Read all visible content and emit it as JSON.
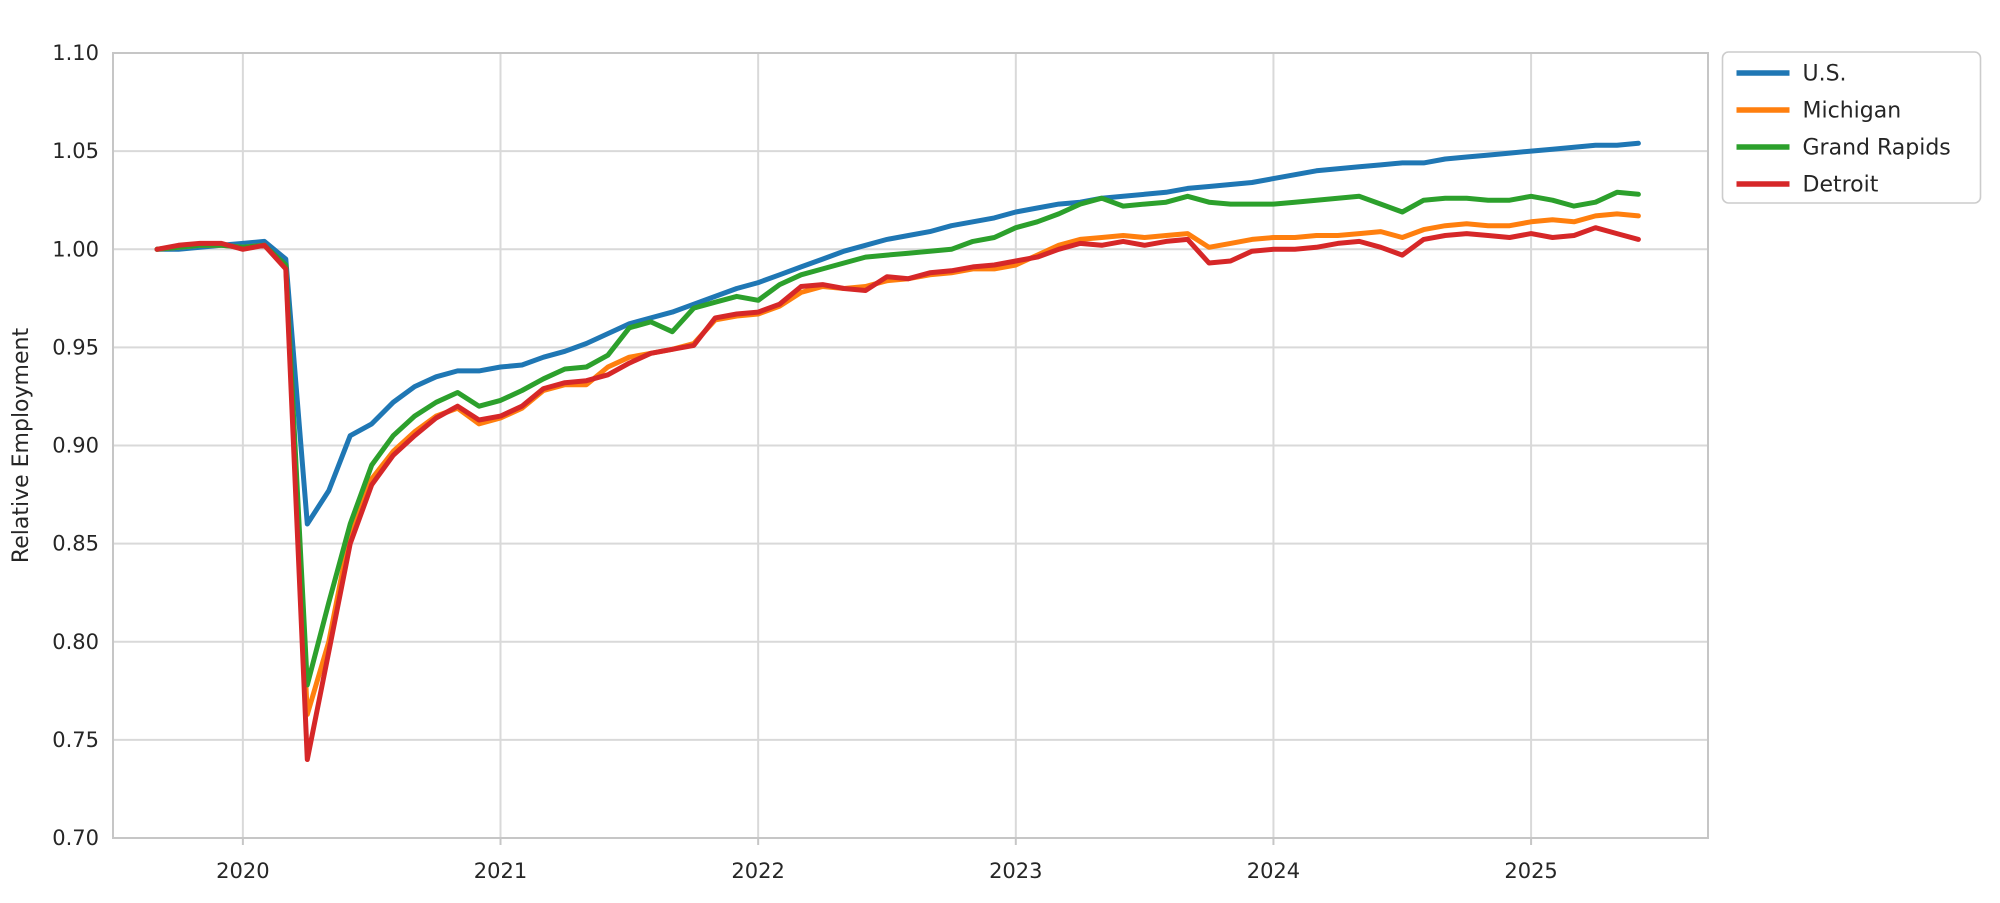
{
  "chart_data": {
    "type": "line",
    "title": "",
    "xlabel": "",
    "ylabel": "Relative Employment",
    "grid": true,
    "legend_position": "outside-upper-right",
    "y_axis": {
      "min": 0.7,
      "max": 1.1,
      "step": 0.05,
      "tick_labels": [
        "0.70",
        "0.75",
        "0.80",
        "0.85",
        "0.90",
        "0.95",
        "1.00",
        "1.05",
        "1.10"
      ]
    },
    "x_axis": {
      "ticks": [
        {
          "label": "2020",
          "month_index": 4
        },
        {
          "label": "2021",
          "month_index": 16
        },
        {
          "label": "2022",
          "month_index": 28
        },
        {
          "label": "2023",
          "month_index": 40
        },
        {
          "label": "2024",
          "month_index": 52
        },
        {
          "label": "2025",
          "month_index": 64
        }
      ]
    },
    "x": [
      "2019-09",
      "2019-10",
      "2019-11",
      "2019-12",
      "2020-01",
      "2020-02",
      "2020-03",
      "2020-04",
      "2020-05",
      "2020-06",
      "2020-07",
      "2020-08",
      "2020-09",
      "2020-10",
      "2020-11",
      "2020-12",
      "2021-01",
      "2021-02",
      "2021-03",
      "2021-04",
      "2021-05",
      "2021-06",
      "2021-07",
      "2021-08",
      "2021-09",
      "2021-10",
      "2021-11",
      "2021-12",
      "2022-01",
      "2022-02",
      "2022-03",
      "2022-04",
      "2022-05",
      "2022-06",
      "2022-07",
      "2022-08",
      "2022-09",
      "2022-10",
      "2022-11",
      "2022-12",
      "2023-01",
      "2023-02",
      "2023-03",
      "2023-04",
      "2023-05",
      "2023-06",
      "2023-07",
      "2023-08",
      "2023-09",
      "2023-10",
      "2023-11",
      "2023-12",
      "2024-01",
      "2024-02",
      "2024-03",
      "2024-04",
      "2024-05",
      "2024-06",
      "2024-07",
      "2024-08",
      "2024-09",
      "2024-10",
      "2024-11",
      "2024-12",
      "2025-01",
      "2025-02",
      "2025-03",
      "2025-04",
      "2025-05",
      "2025-06"
    ],
    "series": [
      {
        "name": "U.S.",
        "color": "#1f77b4",
        "values": [
          1.0,
          1.0,
          1.001,
          1.002,
          1.003,
          1.004,
          0.995,
          0.86,
          0.877,
          0.905,
          0.911,
          0.922,
          0.93,
          0.935,
          0.938,
          0.938,
          0.94,
          0.941,
          0.945,
          0.948,
          0.952,
          0.957,
          0.962,
          0.965,
          0.968,
          0.972,
          0.976,
          0.98,
          0.983,
          0.987,
          0.991,
          0.995,
          0.999,
          1.002,
          1.005,
          1.007,
          1.009,
          1.012,
          1.014,
          1.016,
          1.019,
          1.021,
          1.023,
          1.024,
          1.026,
          1.027,
          1.028,
          1.029,
          1.031,
          1.032,
          1.033,
          1.034,
          1.036,
          1.038,
          1.04,
          1.041,
          1.042,
          1.043,
          1.044,
          1.044,
          1.046,
          1.047,
          1.048,
          1.049,
          1.05,
          1.051,
          1.052,
          1.053,
          1.053,
          1.054
        ]
      },
      {
        "name": "Michigan",
        "color": "#ff7f0e",
        "values": [
          1.0,
          1.001,
          1.002,
          1.002,
          1.001,
          1.002,
          0.991,
          0.763,
          0.8,
          0.856,
          0.883,
          0.897,
          0.907,
          0.915,
          0.919,
          0.911,
          0.914,
          0.919,
          0.928,
          0.931,
          0.931,
          0.94,
          0.945,
          0.947,
          0.949,
          0.952,
          0.964,
          0.966,
          0.967,
          0.971,
          0.978,
          0.981,
          0.98,
          0.981,
          0.984,
          0.985,
          0.987,
          0.988,
          0.99,
          0.99,
          0.992,
          0.997,
          1.002,
          1.005,
          1.006,
          1.007,
          1.006,
          1.007,
          1.008,
          1.001,
          1.003,
          1.005,
          1.006,
          1.006,
          1.007,
          1.007,
          1.008,
          1.009,
          1.006,
          1.01,
          1.012,
          1.013,
          1.012,
          1.012,
          1.014,
          1.015,
          1.014,
          1.017,
          1.018,
          1.017
        ]
      },
      {
        "name": "Grand Rapids",
        "color": "#2ca02c",
        "values": [
          1.0,
          1.001,
          1.002,
          1.002,
          1.001,
          1.002,
          0.992,
          0.778,
          0.82,
          0.86,
          0.89,
          0.905,
          0.915,
          0.922,
          0.927,
          0.92,
          0.923,
          0.928,
          0.934,
          0.939,
          0.94,
          0.946,
          0.96,
          0.963,
          0.958,
          0.97,
          0.973,
          0.976,
          0.974,
          0.982,
          0.987,
          0.99,
          0.993,
          0.996,
          0.997,
          0.998,
          0.999,
          1.0,
          1.004,
          1.006,
          1.011,
          1.014,
          1.018,
          1.023,
          1.026,
          1.022,
          1.023,
          1.024,
          1.027,
          1.024,
          1.023,
          1.023,
          1.023,
          1.024,
          1.025,
          1.026,
          1.027,
          1.023,
          1.019,
          1.025,
          1.026,
          1.026,
          1.025,
          1.025,
          1.027,
          1.025,
          1.022,
          1.024,
          1.029,
          1.028
        ]
      },
      {
        "name": "Detroit",
        "color": "#d62728",
        "values": [
          1.0,
          1.002,
          1.003,
          1.003,
          1.0,
          1.002,
          0.99,
          0.74,
          0.795,
          0.85,
          0.88,
          0.895,
          0.905,
          0.914,
          0.92,
          0.913,
          0.915,
          0.92,
          0.929,
          0.932,
          0.933,
          0.936,
          0.942,
          0.947,
          0.949,
          0.951,
          0.965,
          0.967,
          0.968,
          0.972,
          0.981,
          0.982,
          0.98,
          0.979,
          0.986,
          0.985,
          0.988,
          0.989,
          0.991,
          0.992,
          0.994,
          0.996,
          1.0,
          1.003,
          1.002,
          1.004,
          1.002,
          1.004,
          1.005,
          0.993,
          0.994,
          0.999,
          1.0,
          1.0,
          1.001,
          1.003,
          1.004,
          1.001,
          0.997,
          1.005,
          1.007,
          1.008,
          1.007,
          1.006,
          1.008,
          1.006,
          1.007,
          1.011,
          1.008,
          1.005
        ]
      }
    ],
    "style": {
      "grid_color": "#d9d9d9",
      "spine_color": "#c6c6c6",
      "tick_label_color": "#262626",
      "background": "#ffffff"
    }
  }
}
